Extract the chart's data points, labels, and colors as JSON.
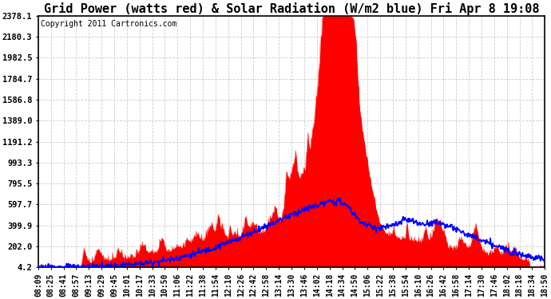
{
  "title": "Grid Power (watts red) & Solar Radiation (W/m2 blue) Fri Apr 8 19:08",
  "copyright": "Copyright 2011 Cartronics.com",
  "yticks": [
    4.2,
    202.0,
    399.9,
    597.7,
    795.5,
    993.3,
    1191.2,
    1389.0,
    1586.8,
    1784.7,
    1982.5,
    2180.3,
    2378.1
  ],
  "ymax": 2378.1,
  "ymin": 4.2,
  "x_labels": [
    "08:09",
    "08:25",
    "08:41",
    "08:57",
    "09:13",
    "09:29",
    "09:45",
    "10:01",
    "10:17",
    "10:33",
    "10:50",
    "11:06",
    "11:22",
    "11:38",
    "11:54",
    "12:10",
    "12:26",
    "12:42",
    "12:58",
    "13:14",
    "13:30",
    "13:46",
    "14:02",
    "14:18",
    "14:34",
    "14:50",
    "15:06",
    "15:22",
    "15:38",
    "15:54",
    "16:10",
    "16:26",
    "16:42",
    "16:58",
    "17:14",
    "17:30",
    "17:46",
    "18:02",
    "18:18",
    "18:34",
    "18:50"
  ],
  "background_color": "#ffffff",
  "grid_color": "#cccccc",
  "red_color": "#ff0000",
  "blue_color": "#0000ff",
  "title_fontsize": 11,
  "tick_fontsize": 7.5,
  "copyright_fontsize": 7
}
